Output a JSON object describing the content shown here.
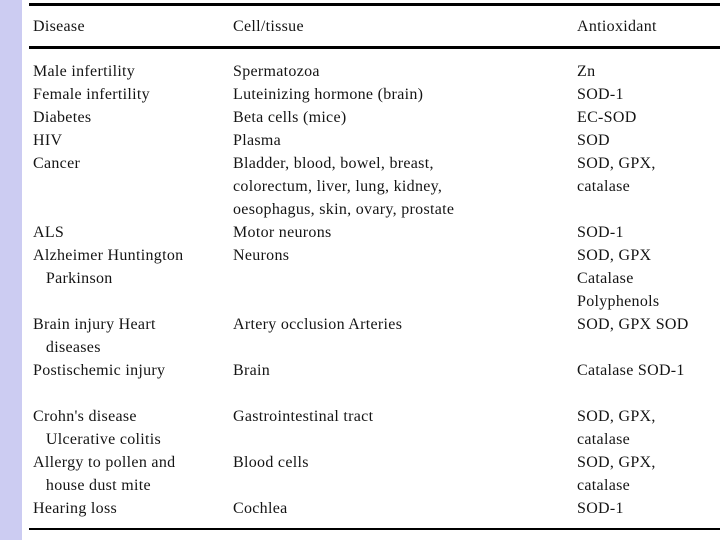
{
  "page": {
    "accent_strip_color": "#ccccf2",
    "rule_color": "#000000",
    "background_color": "#ffffff"
  },
  "table": {
    "headers": {
      "disease": "Disease",
      "cell_tissue": "Cell/tissue",
      "antioxidant": "Antioxidant"
    },
    "rows": [
      {
        "disease": "Male infertility",
        "cell_tissue": "Spermatozoa",
        "antioxidant": "Zn"
      },
      {
        "disease": "Female infertility",
        "cell_tissue": "Luteinizing hormone (brain)",
        "antioxidant": "SOD-1"
      },
      {
        "disease": "Diabetes",
        "cell_tissue": "Beta cells (mice)",
        "antioxidant": "EC-SOD"
      },
      {
        "disease": "HIV",
        "cell_tissue": "Plasma",
        "antioxidant": "SOD"
      },
      {
        "disease": "Cancer",
        "cell_tissue": "Bladder, blood, bowel, breast,\ncolorectum, liver, lung, kidney,\noesophagus, skin, ovary, prostate",
        "antioxidant": "SOD, GPX,\ncatalase"
      },
      {
        "disease": "ALS",
        "cell_tissue": "Motor neurons",
        "antioxidant": "SOD-1"
      },
      {
        "disease": "Alzheimer Huntington\n   Parkinson",
        "cell_tissue": "Neurons",
        "antioxidant": "SOD, GPX\nCatalase\nPolyphenols"
      },
      {
        "disease": "Brain injury Heart\n   diseases",
        "cell_tissue": "Artery occlusion Arteries",
        "antioxidant": "SOD, GPX SOD"
      },
      {
        "disease": "Postischemic injury",
        "cell_tissue": "Brain",
        "antioxidant": "Catalase SOD-1"
      },
      {
        "disease": "Crohn's disease\n   Ulcerative colitis",
        "cell_tissue": "Gastrointestinal tract",
        "antioxidant": "SOD, GPX,\ncatalase"
      },
      {
        "disease": "Allergy to pollen and\n   house dust mite",
        "cell_tissue": "Blood cells",
        "antioxidant": "SOD, GPX,\ncatalase"
      },
      {
        "disease": "Hearing loss",
        "cell_tissue": "Cochlea",
        "antioxidant": "SOD-1"
      }
    ]
  }
}
